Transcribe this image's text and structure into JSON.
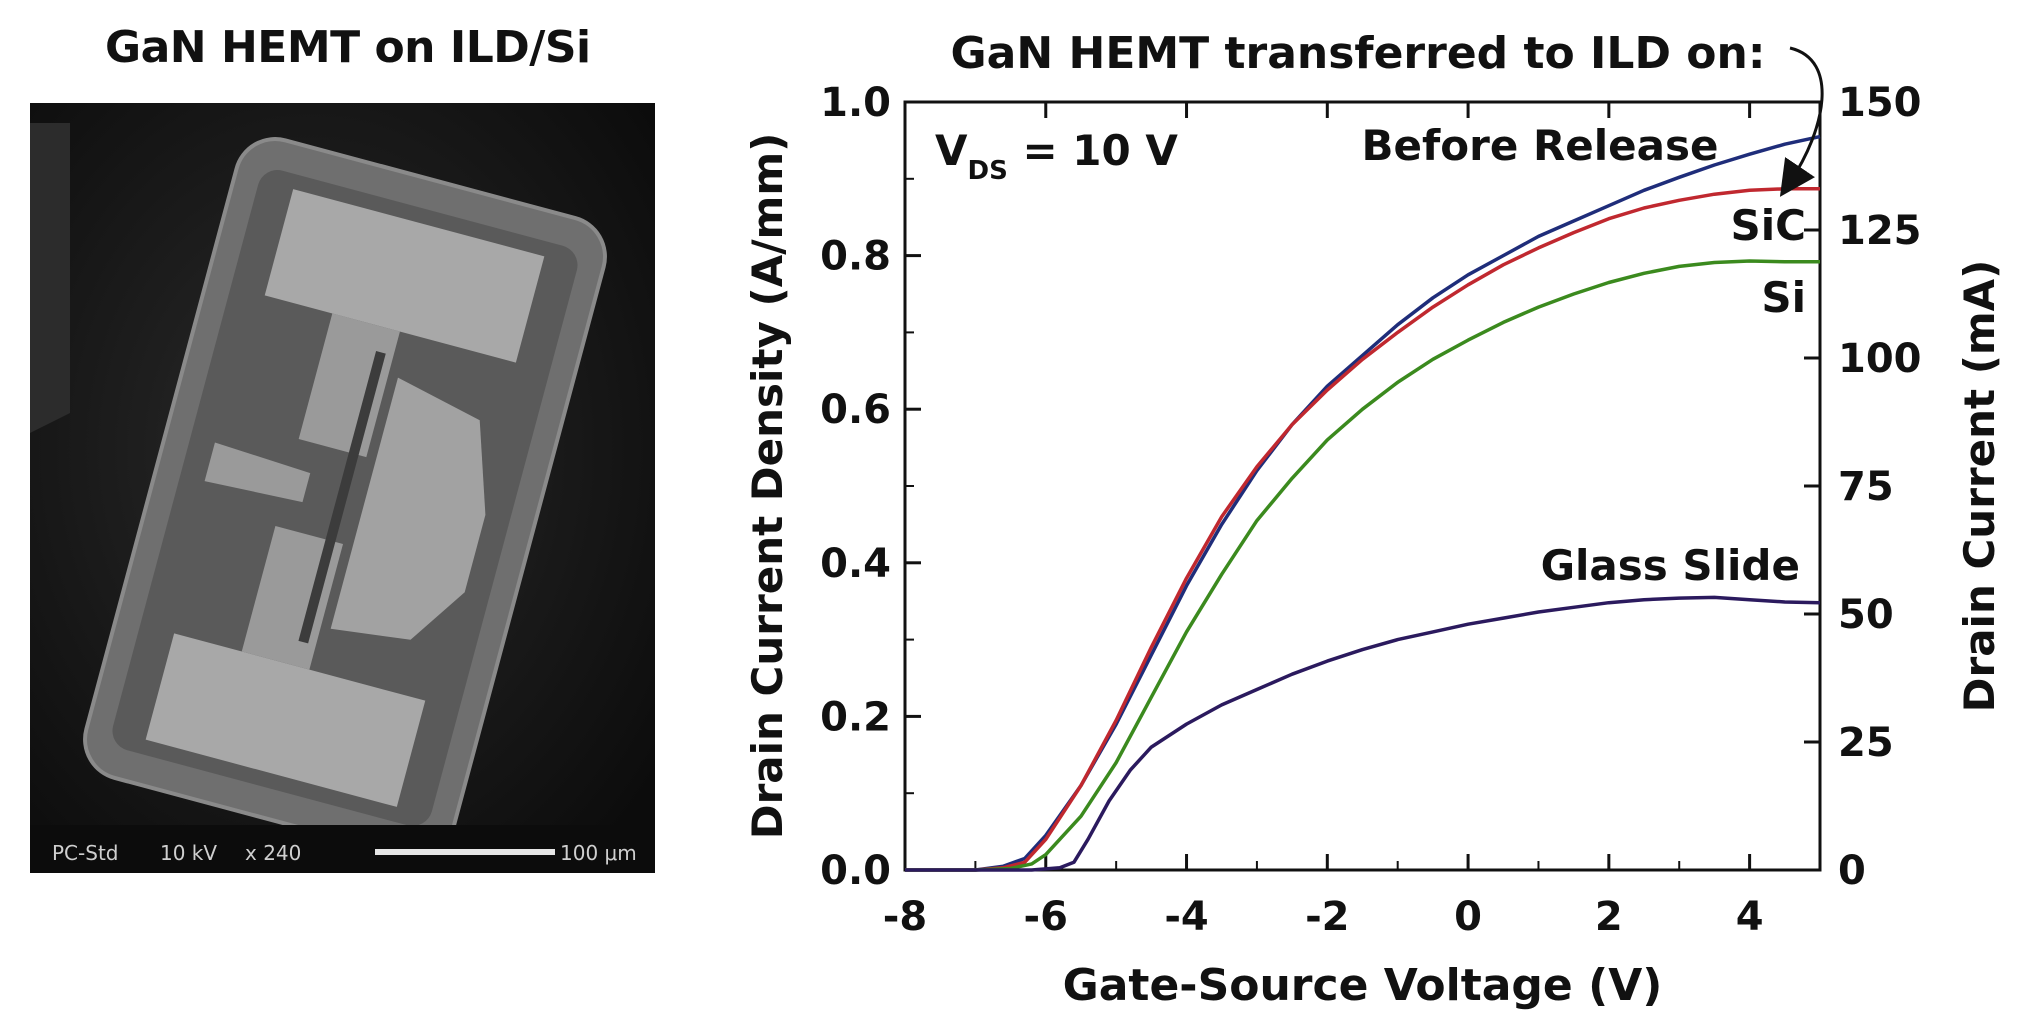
{
  "left_panel": {
    "title": "GaN HEMT on ILD/Si",
    "sem_info": {
      "detector": "PC-Std",
      "voltage": "10 kV",
      "magnification": "x 240",
      "scale_bar": "100 μm"
    }
  },
  "chart_data": {
    "type": "line",
    "title": "GaN HEMT transferred to ILD on:",
    "annotation": "V_DS = 10 V",
    "annotation_main": "V",
    "annotation_sub": "DS",
    "annotation_rest": " = 10 V",
    "xlabel": "Gate-Source Voltage (V)",
    "ylabel": "Drain Current Density (A/mm)",
    "y2label": "Drain Current (mA)",
    "xlim": [
      -8,
      5
    ],
    "ylim": [
      0,
      1.0
    ],
    "y2lim": [
      0,
      150
    ],
    "x_ticks": [
      "-8",
      "-6",
      "-4",
      "-2",
      "0",
      "2",
      "4"
    ],
    "x_tick_values": [
      -8,
      -6,
      -4,
      -2,
      0,
      2,
      4
    ],
    "y_ticks": [
      "0.0",
      "0.2",
      "0.4",
      "0.6",
      "0.8",
      "1.0"
    ],
    "y_tick_values": [
      0,
      0.2,
      0.4,
      0.6,
      0.8,
      1.0
    ],
    "y2_ticks": [
      "0",
      "25",
      "50",
      "75",
      "100",
      "125",
      "150"
    ],
    "y2_tick_values": [
      0,
      25,
      50,
      75,
      100,
      125,
      150
    ],
    "grid": false,
    "series": [
      {
        "name": "Before Release",
        "color": "#1f2d7a",
        "points": [
          [
            -8,
            0
          ],
          [
            -7,
            0.0
          ],
          [
            -6.6,
            0.005
          ],
          [
            -6.3,
            0.015
          ],
          [
            -6,
            0.045
          ],
          [
            -5.5,
            0.11
          ],
          [
            -5,
            0.19
          ],
          [
            -4.5,
            0.28
          ],
          [
            -4,
            0.37
          ],
          [
            -3.5,
            0.45
          ],
          [
            -3,
            0.52
          ],
          [
            -2.5,
            0.58
          ],
          [
            -2,
            0.63
          ],
          [
            -1.5,
            0.67
          ],
          [
            -1,
            0.71
          ],
          [
            -0.5,
            0.745
          ],
          [
            0,
            0.775
          ],
          [
            0.5,
            0.8
          ],
          [
            1,
            0.825
          ],
          [
            1.5,
            0.845
          ],
          [
            2,
            0.865
          ],
          [
            2.5,
            0.885
          ],
          [
            3,
            0.902
          ],
          [
            3.5,
            0.918
          ],
          [
            4,
            0.932
          ],
          [
            4.5,
            0.945
          ],
          [
            5,
            0.955
          ]
        ]
      },
      {
        "name": "SiC",
        "color": "#c0282f",
        "points": [
          [
            -8,
            0
          ],
          [
            -7,
            0.0
          ],
          [
            -6.6,
            0.003
          ],
          [
            -6.3,
            0.01
          ],
          [
            -6,
            0.04
          ],
          [
            -5.5,
            0.11
          ],
          [
            -5,
            0.195
          ],
          [
            -4.5,
            0.29
          ],
          [
            -4,
            0.38
          ],
          [
            -3.5,
            0.46
          ],
          [
            -3,
            0.525
          ],
          [
            -2.5,
            0.58
          ],
          [
            -2,
            0.625
          ],
          [
            -1.5,
            0.665
          ],
          [
            -1,
            0.7
          ],
          [
            -0.5,
            0.733
          ],
          [
            0,
            0.762
          ],
          [
            0.5,
            0.788
          ],
          [
            1,
            0.81
          ],
          [
            1.5,
            0.83
          ],
          [
            2,
            0.848
          ],
          [
            2.5,
            0.862
          ],
          [
            3,
            0.872
          ],
          [
            3.5,
            0.88
          ],
          [
            4,
            0.885
          ],
          [
            4.5,
            0.887
          ],
          [
            5,
            0.887
          ]
        ]
      },
      {
        "name": "Si",
        "color": "#3b8a1e",
        "points": [
          [
            -8,
            0
          ],
          [
            -7,
            0.0
          ],
          [
            -6.5,
            0.002
          ],
          [
            -6.2,
            0.008
          ],
          [
            -6,
            0.02
          ],
          [
            -5.5,
            0.07
          ],
          [
            -5,
            0.14
          ],
          [
            -4.5,
            0.225
          ],
          [
            -4,
            0.31
          ],
          [
            -3.5,
            0.385
          ],
          [
            -3,
            0.455
          ],
          [
            -2.5,
            0.51
          ],
          [
            -2,
            0.56
          ],
          [
            -1.5,
            0.6
          ],
          [
            -1,
            0.635
          ],
          [
            -0.5,
            0.665
          ],
          [
            0,
            0.69
          ],
          [
            0.5,
            0.713
          ],
          [
            1,
            0.733
          ],
          [
            1.5,
            0.75
          ],
          [
            2,
            0.765
          ],
          [
            2.5,
            0.777
          ],
          [
            3,
            0.786
          ],
          [
            3.5,
            0.791
          ],
          [
            4,
            0.793
          ],
          [
            4.5,
            0.792
          ],
          [
            5,
            0.792
          ]
        ]
      },
      {
        "name": "Glass Slide",
        "color": "#2b1a5e",
        "points": [
          [
            -8,
            0
          ],
          [
            -7,
            0.0
          ],
          [
            -6.2,
            0.0
          ],
          [
            -5.8,
            0.003
          ],
          [
            -5.6,
            0.01
          ],
          [
            -5.4,
            0.04
          ],
          [
            -5.1,
            0.09
          ],
          [
            -4.8,
            0.13
          ],
          [
            -4.5,
            0.16
          ],
          [
            -4,
            0.19
          ],
          [
            -3.5,
            0.215
          ],
          [
            -3,
            0.235
          ],
          [
            -2.5,
            0.255
          ],
          [
            -2,
            0.272
          ],
          [
            -1.5,
            0.287
          ],
          [
            -1,
            0.3
          ],
          [
            -0.5,
            0.31
          ],
          [
            0,
            0.32
          ],
          [
            0.5,
            0.328
          ],
          [
            1,
            0.336
          ],
          [
            1.5,
            0.342
          ],
          [
            2,
            0.348
          ],
          [
            2.5,
            0.352
          ],
          [
            3,
            0.354
          ],
          [
            3.5,
            0.355
          ],
          [
            4,
            0.352
          ],
          [
            4.5,
            0.349
          ],
          [
            5,
            0.348
          ]
        ]
      }
    ]
  }
}
